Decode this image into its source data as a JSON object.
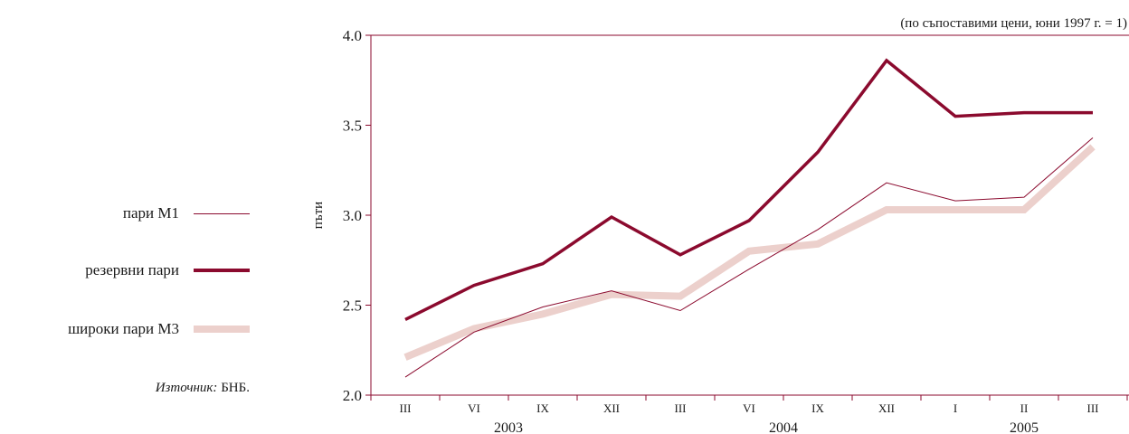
{
  "legend": {
    "items": [
      {
        "label": "пари М1",
        "color": "#8b0a2e",
        "width": 1
      },
      {
        "label": "резервни пари",
        "color": "#8b0a2e",
        "width": 3.5
      },
      {
        "label": "широки пари М3",
        "color": "#ecd0cc",
        "width": 8
      }
    ],
    "source_italic": "Източник:",
    "source_text": " БНБ."
  },
  "chart_data": {
    "type": "line",
    "subtitle": "(по съпоставими цени, юни 1997 г. = 1)",
    "ylabel": "пъти",
    "ylim": [
      2.0,
      4.0
    ],
    "yticks": [
      "2.0",
      "2.5",
      "3.0",
      "3.5",
      "4.0"
    ],
    "categories": [
      "III",
      "VI",
      "IX",
      "XII",
      "III",
      "VI",
      "IX",
      "XII",
      "I",
      "II",
      "III"
    ],
    "years": [
      {
        "label": "2003",
        "start": 0,
        "end": 3
      },
      {
        "label": "2004",
        "start": 4,
        "end": 7
      },
      {
        "label": "2005",
        "start": 8,
        "end": 10
      }
    ],
    "series": [
      {
        "name": "широки пари М3",
        "color": "#ecd0cc",
        "width": 8,
        "values": [
          2.21,
          2.37,
          2.45,
          2.56,
          2.55,
          2.8,
          2.84,
          3.03,
          3.03,
          3.03,
          3.38
        ]
      },
      {
        "name": "пари М1",
        "color": "#8b0a2e",
        "width": 1,
        "values": [
          2.1,
          2.35,
          2.49,
          2.58,
          2.47,
          2.7,
          2.92,
          3.18,
          3.08,
          3.1,
          3.43
        ]
      },
      {
        "name": "резервни пари",
        "color": "#8b0a2e",
        "width": 3.5,
        "values": [
          2.42,
          2.61,
          2.73,
          2.99,
          2.78,
          2.97,
          3.35,
          3.86,
          3.55,
          3.57,
          3.57
        ]
      }
    ]
  }
}
